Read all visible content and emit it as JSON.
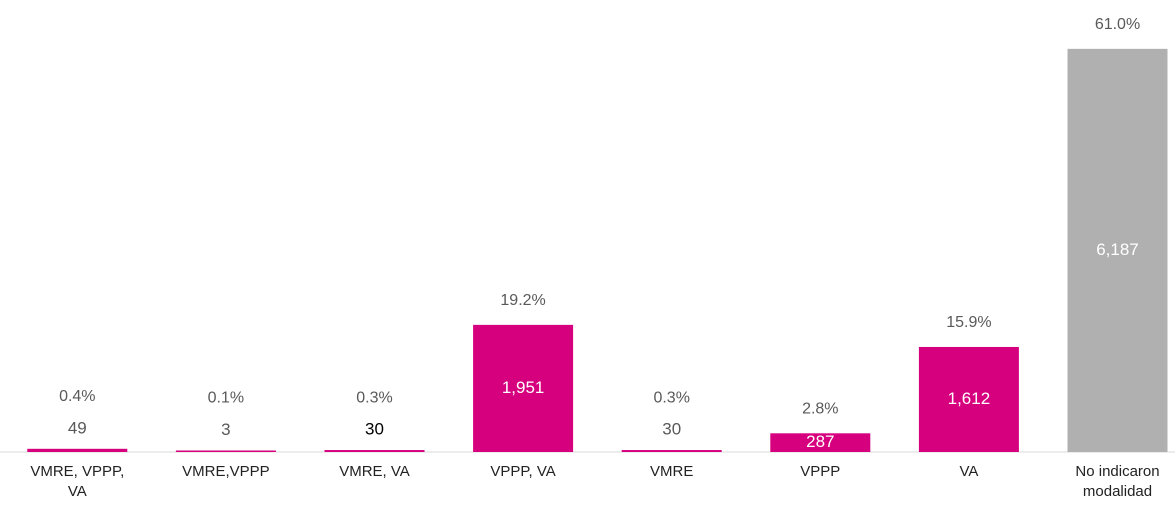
{
  "chart_data": {
    "type": "bar",
    "categories": [
      "VMRE, VPPP,\nVA",
      "VMRE,VPPP",
      "VMRE, VA",
      "VPPP, VA",
      "VMRE",
      "VPPP",
      "VA",
      "No indicaron\nmodalidad"
    ],
    "values": [
      49,
      3,
      30,
      1951,
      30,
      287,
      1612,
      6187
    ],
    "value_labels": [
      "49",
      "3",
      "30",
      "1,951",
      "30",
      "287",
      "1,612",
      "6,187"
    ],
    "percent_labels": [
      "0.4%",
      "0.1%",
      "0.3%",
      "19.2%",
      "0.3%",
      "2.8%",
      "15.9%",
      "61.0%"
    ],
    "colors": [
      "#d6007f",
      "#d6007f",
      "#d6007f",
      "#d6007f",
      "#d6007f",
      "#d6007f",
      "#d6007f",
      "#b0b0b0"
    ],
    "ylim": [
      0,
      6200
    ]
  }
}
